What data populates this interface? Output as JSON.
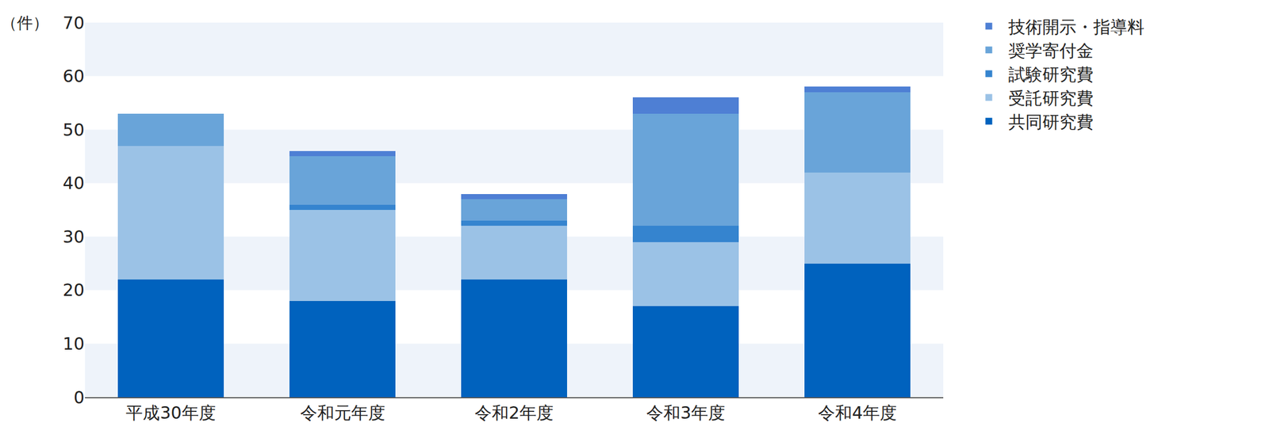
{
  "chart_data": {
    "type": "bar",
    "stacked": true,
    "ylabel": "（件）",
    "categories": [
      "平成30年度",
      "令和元年度",
      "令和2年度",
      "令和3年度",
      "令和4年度"
    ],
    "series": [
      {
        "name": "共同研究費",
        "color": "#0062be",
        "values": [
          22,
          18,
          22,
          17,
          25
        ]
      },
      {
        "name": "受託研究費",
        "color": "#9bc2e6",
        "values": [
          25,
          17,
          10,
          12,
          17
        ]
      },
      {
        "name": "試験研究費",
        "color": "#3584cf",
        "values": [
          0,
          1,
          1,
          3,
          0
        ]
      },
      {
        "name": "奨学寄付金",
        "color": "#69a4d9",
        "values": [
          6,
          9,
          4,
          21,
          15
        ]
      },
      {
        "name": "技術開示・指導料",
        "color": "#4e7fd4",
        "values": [
          0,
          1,
          1,
          3,
          1
        ]
      }
    ],
    "ylim": [
      0,
      70
    ],
    "yticks": [
      0,
      10,
      20,
      30,
      40,
      50,
      60,
      70
    ],
    "grid": true,
    "legend": "top right"
  }
}
